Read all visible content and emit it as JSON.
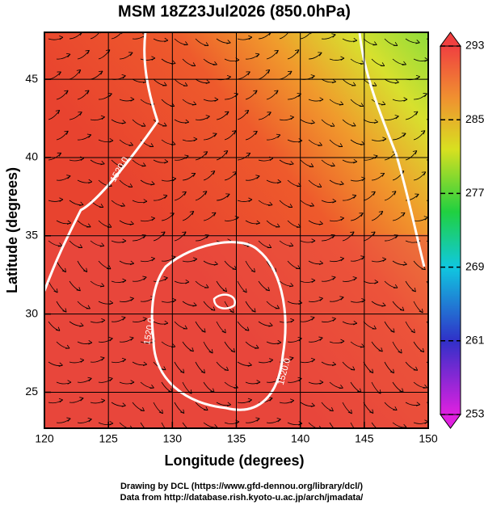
{
  "chart_data": {
    "type": "map",
    "title": "MSM 18Z23Jul2026 (850.0hPa)",
    "xlabel": "Longitude (degrees)",
    "ylabel": "Latitude  (degrees)",
    "xlim": [
      120,
      150
    ],
    "ylim": [
      22.7,
      48
    ],
    "xticks": [
      120,
      125,
      130,
      135,
      140,
      145,
      150
    ],
    "yticks": [
      25,
      30,
      35,
      40,
      45
    ],
    "grid": true,
    "colorbar": {
      "lim": [
        253,
        293
      ],
      "ticks": [
        253,
        261,
        269,
        277,
        285,
        293
      ]
    },
    "contour_labels": [
      "1520.0",
      "1520.0",
      "1520.0"
    ]
  },
  "footer": [
    "Drawing by DCL (https://www.gfd-dennou.org/library/dcl/)",
    "Data from http://database.rish.kyoto-u.ac.jp/arch/jmadata/"
  ]
}
